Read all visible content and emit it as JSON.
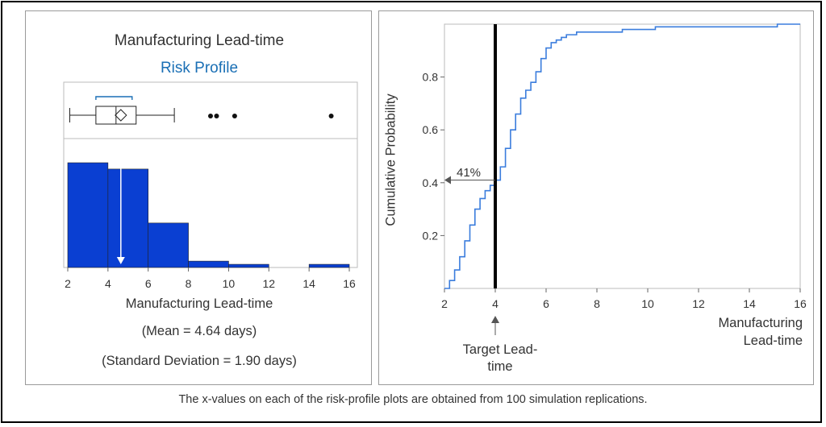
{
  "left": {
    "title": "Manufacturing Lead-time",
    "subtitle": "Risk Profile",
    "xlabel": "Manufacturing Lead-time",
    "mean_text": "(Mean = 4.64 days)",
    "sd_text": "(Standard Deviation = 1.90 days)"
  },
  "right": {
    "ylabel": "Cumulative Probability",
    "pct_label": "41%",
    "target_label": "Target Lead-time",
    "xaxis_title": "Manufacturing Lead-time"
  },
  "caption": "The x-values on each of the risk-profile plots are obtained from 100 simulation replications.",
  "colors": {
    "bar": "#0a3fd2",
    "line": "#3b7ddd",
    "subtitle": "#1a6fb5"
  },
  "chart_data": [
    {
      "type": "bar",
      "subtype": "histogram",
      "bins": [
        [
          2,
          4
        ],
        [
          4,
          6
        ],
        [
          6,
          8
        ],
        [
          8,
          10
        ],
        [
          10,
          12
        ],
        [
          12,
          14
        ],
        [
          14,
          16
        ]
      ],
      "values": [
        0.33,
        0.31,
        0.14,
        0.02,
        0.01,
        0.0,
        0.01
      ],
      "xticks": [
        2,
        4,
        6,
        8,
        10,
        12,
        14,
        16
      ],
      "xlim": [
        1.8,
        16.4
      ],
      "mean": 4.64,
      "boxplot": {
        "whisker_low": 2.1,
        "q1": 3.4,
        "median": 4.4,
        "q3": 5.4,
        "whisker_high": 7.3,
        "mean": 4.64,
        "outliers": [
          9.1,
          9.4,
          10.3,
          15.1
        ],
        "shortest_half": [
          3.4,
          5.2
        ]
      }
    },
    {
      "type": "line",
      "subtype": "cdf",
      "x": [
        2.0,
        2.2,
        2.4,
        2.6,
        2.8,
        3.0,
        3.2,
        3.4,
        3.6,
        3.8,
        4.0,
        4.2,
        4.4,
        4.6,
        4.8,
        5.0,
        5.2,
        5.4,
        5.6,
        5.8,
        6.0,
        6.2,
        6.4,
        6.6,
        6.8,
        7.0,
        7.2,
        7.4,
        8.0,
        9.0,
        9.4,
        10.3,
        12.0,
        14.0,
        15.1,
        16.0
      ],
      "y": [
        0.0,
        0.03,
        0.07,
        0.12,
        0.18,
        0.24,
        0.3,
        0.34,
        0.37,
        0.39,
        0.41,
        0.46,
        0.53,
        0.6,
        0.66,
        0.72,
        0.75,
        0.78,
        0.82,
        0.87,
        0.91,
        0.93,
        0.94,
        0.95,
        0.96,
        0.96,
        0.97,
        0.97,
        0.97,
        0.98,
        0.98,
        0.99,
        0.99,
        0.99,
        1.0,
        1.0
      ],
      "xticks": [
        2,
        4,
        6,
        8,
        10,
        12,
        14,
        16
      ],
      "yticks": [
        0.2,
        0.4,
        0.6,
        0.8
      ],
      "xlim": [
        2,
        16
      ],
      "ylim": [
        0,
        1
      ],
      "target_x": 4,
      "target_prob": 0.41
    }
  ]
}
